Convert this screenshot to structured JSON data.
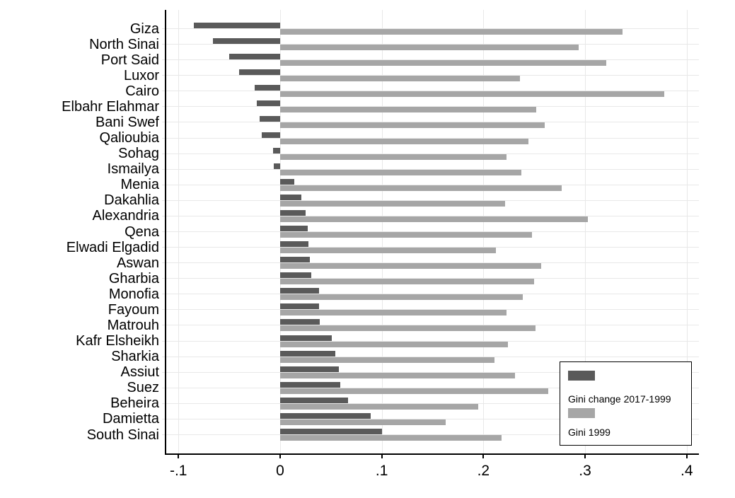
{
  "chart_data": {
    "type": "bar",
    "orientation": "horizontal",
    "title": "",
    "xlabel": "",
    "ylabel": "",
    "categories": [
      "Giza",
      "North Sinai",
      "Port Said",
      "Luxor",
      "Cairo",
      "Elbahr Elahmar",
      "Bani Swef",
      "Qalioubia",
      "Sohag",
      "Ismailya",
      "Menia",
      "Dakahlia",
      "Alexandria",
      "Qena",
      "Elwadi Elgadid",
      "Aswan",
      "Gharbia",
      "Monofia",
      "Fayoum",
      "Matrouh",
      "Kafr Elsheikh",
      "Sharkia",
      "Assiut",
      "Suez",
      "Beheira",
      "Damietta",
      "South Sinai"
    ],
    "series": [
      {
        "name": "Gini change 2017-1999",
        "color": "#5a5a5a",
        "values": [
          -0.085,
          -0.066,
          -0.05,
          -0.04,
          -0.025,
          -0.023,
          -0.02,
          -0.018,
          -0.007,
          -0.006,
          0.014,
          0.021,
          0.025,
          0.027,
          0.028,
          0.029,
          0.031,
          0.038,
          0.038,
          0.039,
          0.051,
          0.054,
          0.058,
          0.059,
          0.067,
          0.089,
          0.1
        ]
      },
      {
        "name": "Gini 1999",
        "color": "#a6a6a6",
        "values": [
          0.337,
          0.294,
          0.321,
          0.236,
          0.378,
          0.252,
          0.26,
          0.244,
          0.223,
          0.237,
          0.277,
          0.221,
          0.303,
          0.248,
          0.212,
          0.257,
          0.25,
          0.239,
          0.223,
          0.251,
          0.224,
          0.211,
          0.231,
          0.264,
          0.195,
          0.163,
          0.218
        ]
      }
    ],
    "x_ticks": [
      -0.1,
      0,
      0.1,
      0.2,
      0.3,
      0.4
    ],
    "x_tick_labels": [
      "-.1",
      "0",
      ".1",
      ".2",
      ".3",
      ".4"
    ],
    "xlim": [
      -0.112,
      0.412
    ],
    "grid": true,
    "legend_position": "bottom-right"
  },
  "colors": {
    "background": "#ffffff",
    "axis": "#000000",
    "gridline": "#e8e8e8",
    "bar_dark": "#5a5a5a",
    "bar_light": "#a6a6a6"
  },
  "legend": {
    "items": [
      {
        "label": "Gini change 2017-1999",
        "color": "#5a5a5a"
      },
      {
        "label": "Gini 1999",
        "color": "#a6a6a6"
      }
    ]
  }
}
